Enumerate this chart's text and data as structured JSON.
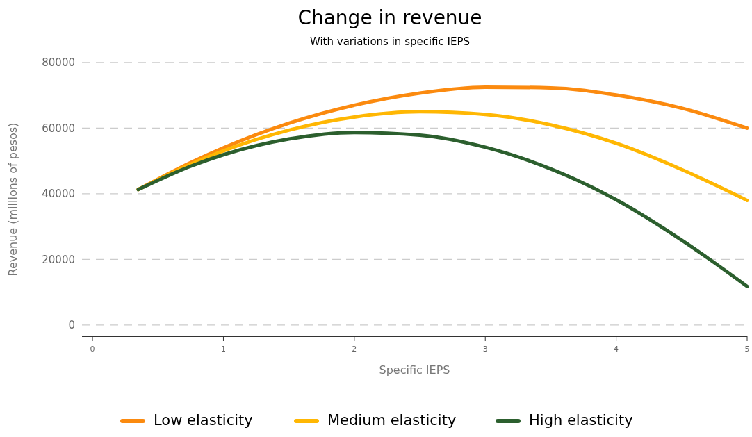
{
  "chart_data": {
    "type": "line",
    "title": "Change in revenue",
    "subtitle": "With variations in specific IEPS",
    "xlabel": "Specific IEPS",
    "ylabel": "Revenue (millions of pesos)",
    "x": [
      0.35,
      0.75,
      1,
      1.5,
      2,
      2.5,
      3,
      3.5,
      4,
      4.5,
      5
    ],
    "series": [
      {
        "name": "Low elasticity",
        "color": "#fb8a0f",
        "values": [
          41300,
          49500,
          54000,
          61500,
          67000,
          70700,
          72500,
          72300,
          70100,
          66100,
          60000
        ]
      },
      {
        "name": "Medium elasticity",
        "color": "#ffb703",
        "values": [
          41300,
          49000,
          53100,
          59400,
          63400,
          65000,
          64200,
          61000,
          55400,
          47400,
          38000
        ]
      },
      {
        "name": "High elasticity",
        "color": "#2c5f2e",
        "values": [
          41300,
          48400,
          51900,
          56700,
          58700,
          57900,
          54200,
          47600,
          38200,
          25900,
          11800
        ]
      }
    ],
    "xlim": [
      -0.08,
      5.0
    ],
    "xticks": [
      0,
      1,
      2,
      3,
      4,
      5
    ],
    "ylim": [
      -3400,
      80000
    ],
    "yticks": [
      0,
      20000,
      40000,
      60000,
      80000
    ],
    "grid": "y",
    "legend": "bottom",
    "line_style": "solid",
    "marker": "none"
  }
}
